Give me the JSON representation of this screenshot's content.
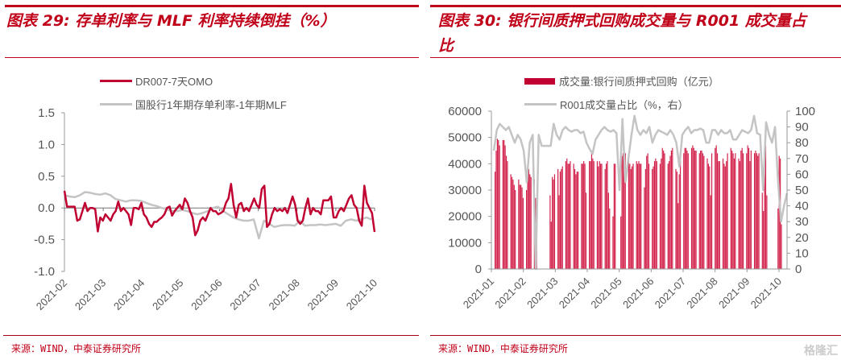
{
  "left": {
    "title": "图表 29:  存单利率与 MLF 利率持续倒挂（%）",
    "source": "来源：WIND，中泰证券研究所"
  },
  "right": {
    "title_line1": "图表 30: 银行间质押式回购成交量与 R001 成交量占",
    "title_line2": "比",
    "source": "来源：WIND，中泰证券研究所",
    "watermark": "格隆汇"
  },
  "colors": {
    "red": "#c00030",
    "bar": "#d2204a",
    "gray": "#c4c4c4",
    "accent": "#c00018"
  },
  "chart_data": [
    {
      "type": "line",
      "title": "存单利率与 MLF 利率持续倒挂（%）",
      "xlabel": "",
      "ylabel": "",
      "ylim": [
        -1.0,
        1.5
      ],
      "yticks": [
        "1.5",
        "1.0",
        "0.5",
        "0.0",
        "-0.5",
        "-1.0"
      ],
      "ytick_values": [
        1.5,
        1.0,
        0.5,
        0.0,
        -0.5,
        -1.0
      ],
      "xticks": [
        "2021-02",
        "2021-03",
        "2021-04",
        "2021-05",
        "2021-06",
        "2021-07",
        "2021-08",
        "2021-09",
        "2021-10"
      ],
      "legend_position": "top",
      "series": [
        {
          "name": "DR007-7天OMO",
          "color": "#c00030",
          "values": [
            0.27,
            0.02,
            0.02,
            0.02,
            0.02,
            -0.2,
            -0.18,
            -0.05,
            0.08,
            -0.05,
            0.0,
            0.0,
            -0.02,
            -0.37,
            -0.15,
            -0.2,
            -0.1,
            -0.15,
            -0.2,
            -0.1,
            -0.05,
            0.1,
            -0.05,
            0.0,
            -0.05,
            -0.1,
            -0.27,
            0.0,
            0.0,
            -0.02,
            0.08,
            -0.1,
            -0.15,
            -0.25,
            -0.3,
            -0.22,
            -0.22,
            -0.18,
            -0.15,
            -0.1,
            0.0,
            0.02,
            -0.12,
            -0.05,
            0.0,
            0.05,
            -0.02,
            0.15,
            0.08,
            -0.05,
            -0.15,
            -0.43,
            -0.35,
            -0.2,
            -0.15,
            -0.2,
            -0.1,
            0.0,
            -0.05,
            -0.05,
            -0.1,
            -0.08,
            -0.05,
            0.08,
            0.15,
            0.38,
            0.05,
            -0.15,
            0.05,
            0.08,
            -0.05,
            0.0,
            -0.05,
            0.05,
            0.15,
            0.05,
            0.0,
            0.3,
            0.35,
            -0.3,
            -0.25,
            -0.1,
            0.0,
            -0.05,
            -0.02,
            -0.05,
            0.0,
            -0.08,
            0.05,
            0.18,
            0.05,
            -0.2,
            -0.25,
            -0.2,
            0.0,
            0.15,
            -0.1,
            0.0,
            -0.05,
            -0.05,
            -0.1,
            0.12,
            0.12,
            0.12,
            0.18,
            -0.15,
            -0.15,
            -0.05,
            0.0,
            -0.05,
            0.05,
            0.15,
            0.2,
            0.05,
            0.0,
            -0.2,
            -0.28,
            0.35,
            0.08,
            0.0,
            -0.08,
            -0.38
          ]
        },
        {
          "name": "国股行1年期存单利率-1年期MLF",
          "color": "#c4c4c4",
          "values": [
            0.2,
            0.18,
            0.17,
            0.2,
            0.25,
            0.24,
            0.22,
            0.21,
            0.23,
            0.2,
            0.14,
            0.12,
            0.1,
            0.12,
            0.12,
            0.11,
            0.08,
            0.05,
            0.03,
            0.0,
            -0.02,
            -0.05,
            -0.05,
            -0.03,
            -0.05,
            -0.08,
            -0.1,
            -0.08,
            -0.05,
            0.0,
            0.02,
            -0.05,
            -0.1,
            -0.15,
            -0.18,
            -0.2,
            -0.2,
            -0.18,
            -0.48,
            -0.2,
            -0.25,
            -0.3,
            -0.28,
            -0.27,
            -0.27,
            -0.28,
            -0.2,
            -0.28,
            -0.27,
            -0.27,
            -0.26,
            -0.27,
            -0.26,
            -0.25,
            -0.28,
            -0.2,
            -0.18,
            -0.2,
            -0.18,
            -0.15,
            -0.18
          ]
        }
      ]
    },
    {
      "type": "bar+line",
      "title": "银行间质押式回购成交量与 R001 成交量占比",
      "ylim_left": [
        0,
        60000
      ],
      "ylim_right": [
        0,
        100
      ],
      "yticks_left": [
        "60000",
        "50000",
        "40000",
        "30000",
        "20000",
        "10000",
        "0"
      ],
      "ytick_values_left": [
        60000,
        50000,
        40000,
        30000,
        20000,
        10000,
        0
      ],
      "yticks_right": [
        "100",
        "90",
        "80",
        "70",
        "60",
        "50",
        "40",
        "30",
        "20",
        "10",
        "0"
      ],
      "ytick_values_right": [
        100,
        90,
        80,
        70,
        60,
        50,
        40,
        30,
        20,
        10,
        0
      ],
      "xticks": [
        "2021-01",
        "2021-02",
        "2021-03",
        "2021-04",
        "2021-05",
        "2021-06",
        "2021-07",
        "2021-08",
        "2021-09",
        "2021-10"
      ],
      "legend_position": "top",
      "bar_series": {
        "name": "成交量:银行间质押式回购（亿元）",
        "color": "#d2204a",
        "weeks": [
          [
            37000,
            45000,
            49500,
            49000,
            47000
          ],
          [
            49000,
            49000,
            47000,
            43000,
            41000
          ],
          [
            36000,
            35000,
            34000,
            32000,
            30000
          ],
          [
            34000,
            32000,
            32000,
            31000,
            27000
          ],
          [
            30000,
            36000,
            38000,
            36000,
            35000
          ],
          [
            34000,
            27000,
            15000
          ],
          [],
          [
            28000,
            18000,
            35000,
            34000,
            36000
          ],
          [
            38000,
            28000,
            37000,
            38000,
            39000
          ],
          [
            41000,
            42000,
            40000,
            40000,
            41000
          ],
          [
            40000,
            38000,
            36000,
            37000,
            37000
          ],
          [
            40000,
            40000,
            41000,
            40000,
            29000
          ],
          [
            41000,
            41000,
            45000,
            42000,
            41000
          ],
          [
            41000,
            39000,
            41000,
            40000,
            40000
          ],
          [
            38000,
            40000,
            41000,
            29000,
            23000
          ],
          [
            20000,
            40000,
            40000
          ],
          [
            20000,
            43000,
            44000,
            43000,
            44000
          ],
          [
            44000,
            40000,
            38000,
            39000,
            40000
          ],
          [
            41000,
            40000,
            41000,
            40000,
            40000
          ],
          [
            31000,
            38000,
            43000,
            44000,
            40000
          ],
          [
            38000,
            39000,
            41000,
            42000,
            41000
          ],
          [
            40000,
            42000,
            46000,
            45000,
            44000
          ],
          [
            40000,
            41000,
            43000,
            45000,
            46000
          ],
          [
            38000,
            37000,
            25000,
            36000,
            43000
          ],
          [
            44000,
            46000,
            46000,
            45000,
            44000
          ],
          [
            46000,
            47000,
            46000,
            45000,
            45000
          ],
          [
            44000,
            45000,
            45000,
            44000,
            43000
          ],
          [
            42000,
            40000,
            39000,
            28000,
            44000
          ],
          [
            46000,
            47000,
            44000,
            41000,
            41000
          ],
          [
            42000,
            40000,
            39000,
            41000,
            44000
          ],
          [
            46000,
            45000,
            44000,
            42000,
            44000
          ],
          [
            42000,
            41000,
            45000,
            46000,
            44000
          ],
          [
            44000,
            47000,
            46000,
            41000,
            45000
          ],
          [
            44000,
            45000,
            44000,
            43000,
            44000
          ],
          [
            29000,
            22000,
            45000,
            47000,
            28000
          ],
          [],
          [
            23000,
            43000,
            42000,
            17000
          ]
        ]
      },
      "line_series": {
        "name": "R001成交量占比（%，右）",
        "color": "#c4c4c4",
        "values": [
          75,
          88,
          92,
          90,
          88,
          90,
          85,
          80,
          85,
          82,
          75,
          55,
          80,
          85,
          0,
          85,
          78,
          78,
          78,
          78,
          92,
          85,
          82,
          88,
          90,
          88,
          87,
          88,
          88,
          86,
          87,
          80,
          76,
          73,
          82,
          85,
          88,
          90,
          88,
          87,
          88,
          86,
          50,
          95,
          55,
          70,
          85,
          97,
          88,
          85,
          88,
          86,
          90,
          80,
          85,
          88,
          87,
          86,
          85,
          88,
          85,
          80,
          65,
          85,
          88,
          90,
          86,
          88,
          88,
          89,
          88,
          80,
          80,
          88,
          88,
          85,
          88,
          86,
          86,
          88,
          82,
          82,
          85,
          88,
          87,
          86,
          88,
          97,
          86,
          85,
          50,
          93,
          85,
          80,
          90,
          55,
          30,
          40,
          48
        ]
      }
    }
  ]
}
